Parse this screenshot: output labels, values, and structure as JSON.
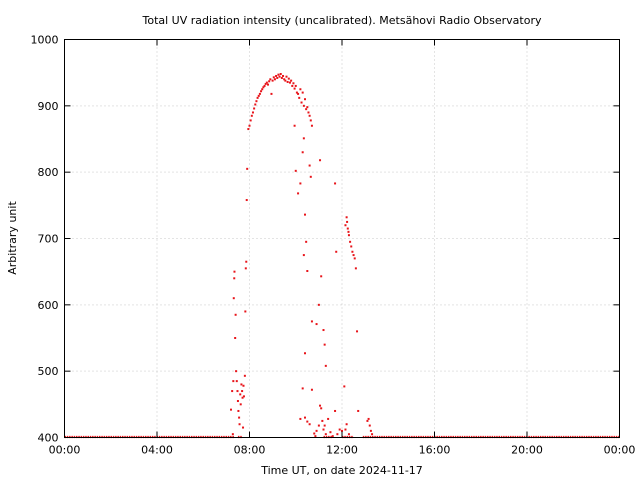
{
  "chart_data": {
    "type": "scatter",
    "title": "Total UV radiation intensity (uncalibrated). Metsähovi Radio Observatory",
    "xlabel": "Time UT, on date 2024-11-17",
    "ylabel": "Arbitrary unit",
    "xlim": [
      0,
      24
    ],
    "ylim": [
      400,
      1000
    ],
    "x_ticks": [
      0,
      4,
      8,
      12,
      16,
      20,
      24
    ],
    "x_tick_labels": [
      "00:00",
      "04:00",
      "08:00",
      "12:00",
      "16:00",
      "20:00",
      "00:00"
    ],
    "y_ticks": [
      400,
      500,
      600,
      700,
      800,
      900,
      1000
    ],
    "y_tick_labels": [
      "400",
      "500",
      "600",
      "700",
      "800",
      "900",
      "1000"
    ],
    "grid": true,
    "marker_color": "#e8141a",
    "series": [
      {
        "baseline": {
          "y": 400,
          "x_ranges": [
            [
              0,
              7.35
            ],
            [
              7.5,
              7.7
            ],
            [
              11.2,
              11.6
            ],
            [
              12.0,
              12.5
            ],
            [
              12.9,
              24
            ]
          ]
        },
        "points": [
          [
            7.2,
            442
          ],
          [
            7.25,
            470
          ],
          [
            7.28,
            405
          ],
          [
            7.3,
            485
          ],
          [
            7.32,
            610
          ],
          [
            7.34,
            640
          ],
          [
            7.35,
            650
          ],
          [
            7.38,
            550
          ],
          [
            7.4,
            585
          ],
          [
            7.42,
            500
          ],
          [
            7.45,
            485
          ],
          [
            7.48,
            470
          ],
          [
            7.5,
            455
          ],
          [
            7.52,
            440
          ],
          [
            7.55,
            430
          ],
          [
            7.57,
            420
          ],
          [
            7.6,
            465
          ],
          [
            7.62,
            450
          ],
          [
            7.65,
            480
          ],
          [
            7.68,
            470
          ],
          [
            7.7,
            460
          ],
          [
            7.72,
            415
          ],
          [
            7.74,
            478
          ],
          [
            7.76,
            462
          ],
          [
            7.8,
            493
          ],
          [
            7.82,
            590
          ],
          [
            7.84,
            655
          ],
          [
            7.86,
            665
          ],
          [
            7.88,
            758
          ],
          [
            7.9,
            805
          ],
          [
            7.95,
            865
          ],
          [
            8.0,
            870
          ],
          [
            8.05,
            878
          ],
          [
            8.1,
            885
          ],
          [
            8.15,
            890
          ],
          [
            8.2,
            896
          ],
          [
            8.25,
            902
          ],
          [
            8.3,
            907
          ],
          [
            8.35,
            912
          ],
          [
            8.4,
            915
          ],
          [
            8.45,
            918
          ],
          [
            8.5,
            922
          ],
          [
            8.55,
            925
          ],
          [
            8.6,
            928
          ],
          [
            8.65,
            930
          ],
          [
            8.7,
            933
          ],
          [
            8.75,
            935
          ],
          [
            8.8,
            932
          ],
          [
            8.85,
            937
          ],
          [
            8.9,
            940
          ],
          [
            8.95,
            918
          ],
          [
            9.0,
            938
          ],
          [
            9.05,
            943
          ],
          [
            9.1,
            940
          ],
          [
            9.15,
            945
          ],
          [
            9.2,
            942
          ],
          [
            9.25,
            947
          ],
          [
            9.3,
            944
          ],
          [
            9.35,
            948
          ],
          [
            9.4,
            942
          ],
          [
            9.45,
            945
          ],
          [
            9.5,
            940
          ],
          [
            9.55,
            938
          ],
          [
            9.6,
            944
          ],
          [
            9.65,
            936
          ],
          [
            9.7,
            941
          ],
          [
            9.75,
            935
          ],
          [
            9.8,
            938
          ],
          [
            9.85,
            930
          ],
          [
            9.9,
            934
          ],
          [
            9.95,
            926
          ],
          [
            10.0,
            930
          ],
          [
            10.05,
            920
          ],
          [
            10.1,
            918
          ],
          [
            10.15,
            912
          ],
          [
            10.2,
            925
          ],
          [
            10.25,
            905
          ],
          [
            10.3,
            920
          ],
          [
            10.35,
            900
          ],
          [
            10.4,
            910
          ],
          [
            10.45,
            895
          ],
          [
            10.5,
            898
          ],
          [
            10.55,
            890
          ],
          [
            10.6,
            885
          ],
          [
            10.65,
            878
          ],
          [
            10.7,
            870
          ],
          [
            9.95,
            870
          ],
          [
            10.0,
            802
          ],
          [
            10.1,
            768
          ],
          [
            10.2,
            783
          ],
          [
            10.3,
            830
          ],
          [
            10.35,
            851
          ],
          [
            10.4,
            736
          ],
          [
            10.45,
            695
          ],
          [
            10.35,
            675
          ],
          [
            10.5,
            651
          ],
          [
            10.4,
            527
          ],
          [
            10.6,
            810
          ],
          [
            10.65,
            793
          ],
          [
            10.7,
            575
          ],
          [
            10.9,
            571
          ],
          [
            11.0,
            600
          ],
          [
            11.1,
            643
          ],
          [
            11.05,
            818
          ],
          [
            11.2,
            562
          ],
          [
            11.25,
            540
          ],
          [
            11.3,
            508
          ],
          [
            11.7,
            783
          ],
          [
            11.75,
            680
          ],
          [
            10.2,
            428
          ],
          [
            10.3,
            474
          ],
          [
            10.4,
            430
          ],
          [
            10.5,
            424
          ],
          [
            10.6,
            420
          ],
          [
            10.7,
            472
          ],
          [
            10.8,
            406
          ],
          [
            10.85,
            402
          ],
          [
            10.9,
            410
          ],
          [
            11.0,
            418
          ],
          [
            11.05,
            448
          ],
          [
            11.1,
            444
          ],
          [
            11.15,
            425
          ],
          [
            11.2,
            412
          ],
          [
            11.25,
            418
          ],
          [
            11.3,
            405
          ],
          [
            11.4,
            428
          ],
          [
            11.5,
            408
          ],
          [
            11.6,
            402
          ],
          [
            11.7,
            440
          ],
          [
            11.8,
            405
          ],
          [
            11.9,
            412
          ],
          [
            12.0,
            410
          ],
          [
            12.1,
            477
          ],
          [
            12.15,
            412
          ],
          [
            12.2,
            420
          ],
          [
            12.3,
            405
          ],
          [
            12.15,
            720
          ],
          [
            12.2,
            732
          ],
          [
            12.22,
            725
          ],
          [
            12.25,
            715
          ],
          [
            12.28,
            710
          ],
          [
            12.3,
            705
          ],
          [
            12.35,
            695
          ],
          [
            12.4,
            688
          ],
          [
            12.45,
            680
          ],
          [
            12.5,
            675
          ],
          [
            12.55,
            670
          ],
          [
            12.6,
            655
          ],
          [
            12.65,
            560
          ],
          [
            12.7,
            440
          ],
          [
            13.1,
            425
          ],
          [
            13.15,
            428
          ],
          [
            13.2,
            418
          ],
          [
            13.25,
            410
          ],
          [
            13.3,
            405
          ]
        ]
      }
    ]
  }
}
